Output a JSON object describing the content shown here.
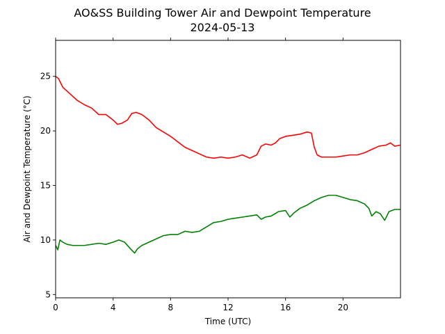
{
  "chart_data": {
    "type": "line",
    "title": "AO&SS Building Tower Air and Dewpoint Temperature",
    "subtitle": "2024-05-13",
    "xlabel": "Time (UTC)",
    "ylabel": "Air and Dewpoint Temperature (°C)",
    "xlim": [
      0,
      24
    ],
    "ylim": [
      4.7,
      28.3
    ],
    "x_ticks": [
      0,
      4,
      8,
      12,
      16,
      20
    ],
    "y_ticks": [
      5,
      10,
      15,
      20,
      25
    ],
    "grid": false,
    "series": [
      {
        "color": "#ff0000",
        "x": [
          0,
          0.2,
          0.5,
          1.0,
          1.5,
          2.0,
          2.5,
          3.0,
          3.5,
          4.0,
          4.3,
          4.6,
          5.0,
          5.3,
          5.6,
          6.0,
          6.5,
          7.0,
          7.5,
          8.0,
          8.5,
          9.0,
          9.5,
          10.0,
          10.5,
          11.0,
          11.5,
          12.0,
          12.5,
          13.0,
          13.5,
          14.0,
          14.3,
          14.6,
          15.0,
          15.3,
          15.6,
          16.0,
          16.5,
          17.0,
          17.5,
          17.8,
          18.0,
          18.2,
          18.5,
          19.0,
          19.5,
          20.0,
          20.5,
          21.0,
          21.5,
          22.0,
          22.5,
          23.0,
          23.3,
          23.6,
          24.0
        ],
        "y": [
          25.0,
          24.8,
          24.0,
          23.4,
          22.8,
          22.4,
          22.1,
          21.5,
          21.5,
          21.0,
          20.6,
          20.7,
          21.0,
          21.6,
          21.7,
          21.5,
          21.0,
          20.3,
          19.9,
          19.5,
          19.0,
          18.5,
          18.2,
          17.9,
          17.6,
          17.5,
          17.6,
          17.5,
          17.6,
          17.8,
          17.5,
          17.8,
          18.6,
          18.8,
          18.7,
          18.9,
          19.3,
          19.5,
          19.6,
          19.7,
          19.9,
          19.8,
          18.5,
          17.8,
          17.6,
          17.6,
          17.6,
          17.7,
          17.8,
          17.8,
          18.0,
          18.3,
          18.6,
          18.7,
          18.9,
          18.6,
          18.7
        ]
      },
      {
        "color": "#008000",
        "x": [
          0,
          0.15,
          0.3,
          0.5,
          0.8,
          1.2,
          1.6,
          2.0,
          2.5,
          3.0,
          3.5,
          4.0,
          4.4,
          4.8,
          5.2,
          5.5,
          5.7,
          6.0,
          6.5,
          7.0,
          7.5,
          8.0,
          8.5,
          9.0,
          9.5,
          10.0,
          10.5,
          11.0,
          11.5,
          12.0,
          12.5,
          13.0,
          13.5,
          14.0,
          14.3,
          14.6,
          15.0,
          15.5,
          16.0,
          16.3,
          16.6,
          17.0,
          17.5,
          18.0,
          18.5,
          19.0,
          19.5,
          20.0,
          20.5,
          21.0,
          21.5,
          21.8,
          22.0,
          22.3,
          22.6,
          22.9,
          23.2,
          23.6,
          24.0
        ],
        "y": [
          9.5,
          9.1,
          10.0,
          9.8,
          9.6,
          9.5,
          9.5,
          9.5,
          9.6,
          9.7,
          9.6,
          9.8,
          10.0,
          9.8,
          9.2,
          8.8,
          9.2,
          9.5,
          9.8,
          10.1,
          10.4,
          10.5,
          10.5,
          10.8,
          10.7,
          10.8,
          11.2,
          11.6,
          11.7,
          11.9,
          12.0,
          12.1,
          12.2,
          12.3,
          11.9,
          12.1,
          12.2,
          12.6,
          12.7,
          12.1,
          12.5,
          12.9,
          13.2,
          13.6,
          13.9,
          14.1,
          14.1,
          13.9,
          13.7,
          13.6,
          13.3,
          12.9,
          12.2,
          12.6,
          12.4,
          11.8,
          12.6,
          12.8,
          12.8
        ]
      }
    ]
  }
}
